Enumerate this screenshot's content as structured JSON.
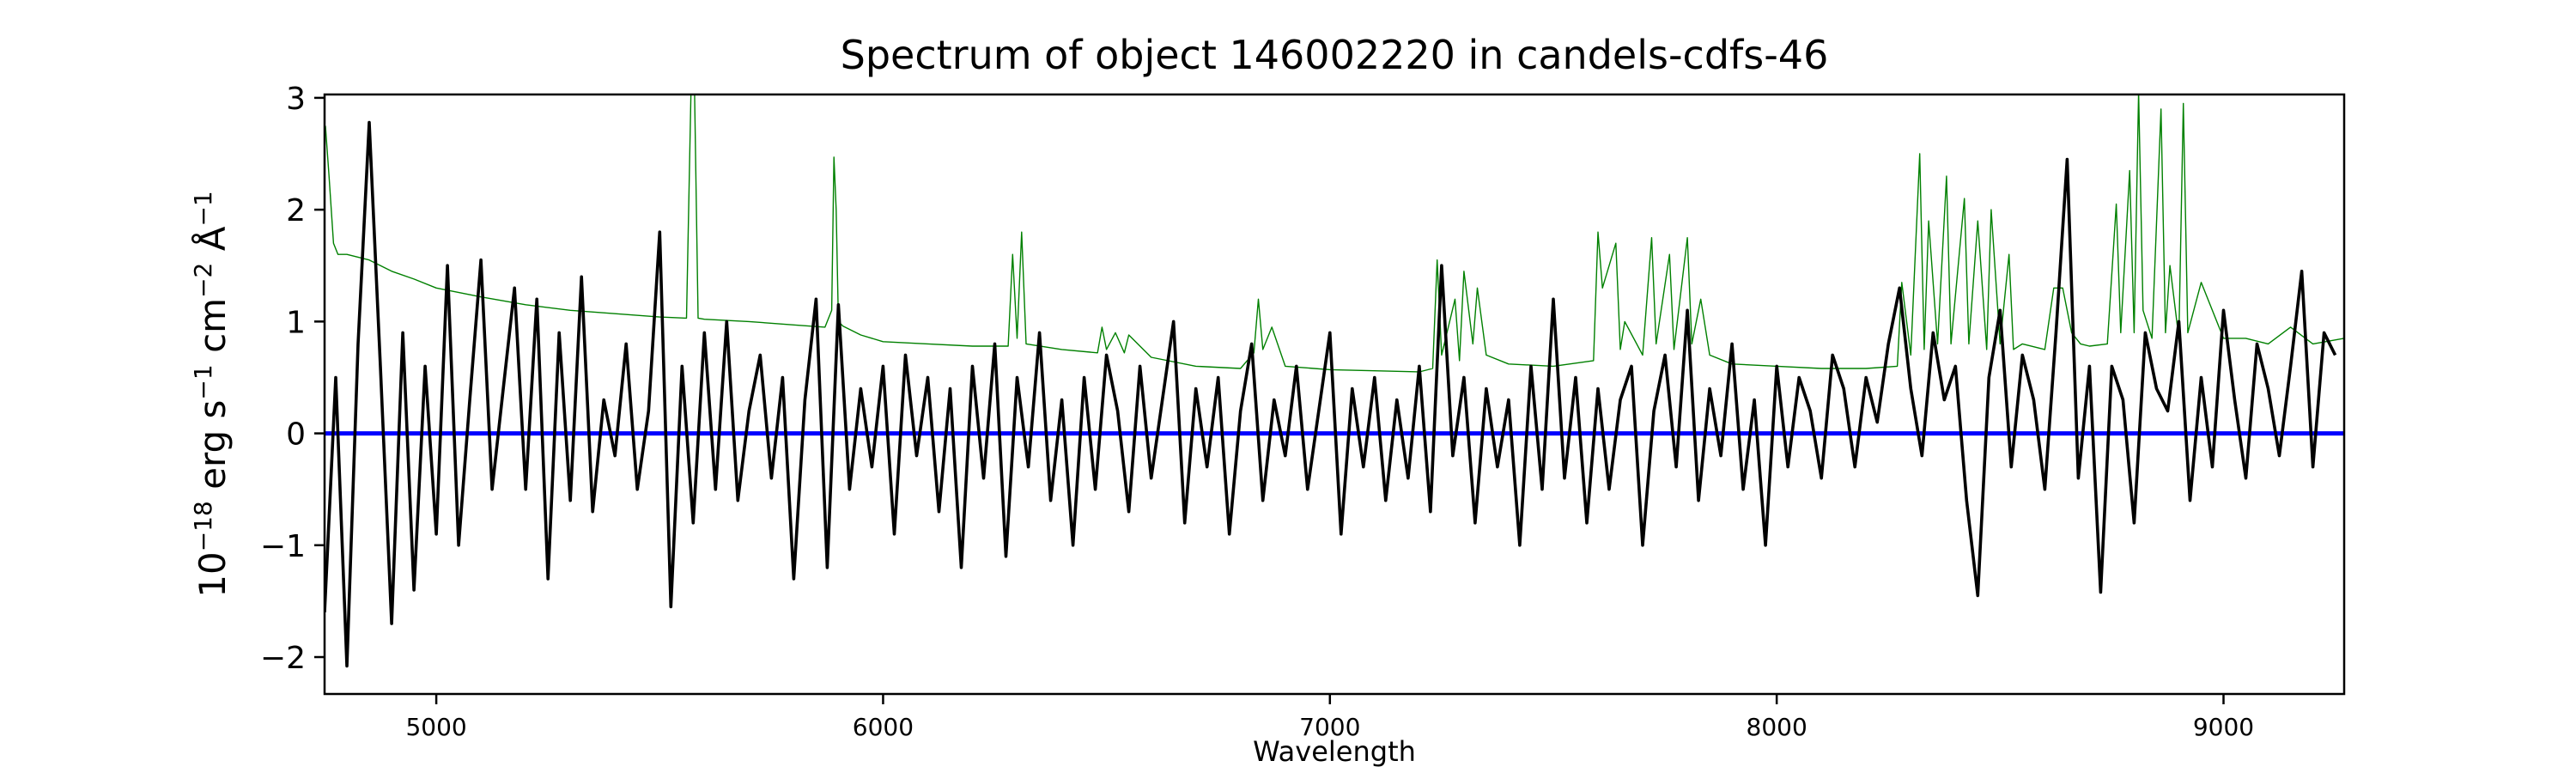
{
  "chart_data": {
    "type": "line",
    "title": "Spectrum of object 146002220 in candels-cdfs-46",
    "xlabel": "Wavelength",
    "ylabel": "10^{-18} erg s^{-1} cm^{-2} Å^{-1}",
    "ylabel_parts": {
      "base": "10",
      "exp1": "−18",
      "erg": " erg s",
      "exp2": "−1",
      "cm": " cm",
      "exp3": "−2",
      "ang": " Å",
      "exp4": "−1"
    },
    "xlim": [
      4750,
      9270
    ],
    "ylim": [
      -2.33,
      3.03
    ],
    "xticks": [
      5000,
      6000,
      7000,
      8000,
      9000
    ],
    "yticks": [
      -2,
      -1,
      0,
      1,
      2,
      3
    ],
    "ytick_labels": [
      "−2",
      "−1",
      "0",
      "1",
      "2",
      "3"
    ],
    "grid": false,
    "series": [
      {
        "color": "#000000",
        "x": [
          4750,
          4775,
          4800,
          4825,
          4850,
          4875,
          4900,
          4925,
          4950,
          4975,
          5000,
          5025,
          5050,
          5075,
          5100,
          5125,
          5150,
          5175,
          5200,
          5225,
          5250,
          5275,
          5300,
          5325,
          5350,
          5375,
          5400,
          5425,
          5450,
          5475,
          5500,
          5525,
          5550,
          5575,
          5600,
          5625,
          5650,
          5675,
          5700,
          5725,
          5750,
          5775,
          5800,
          5825,
          5850,
          5875,
          5900,
          5925,
          5950,
          5975,
          6000,
          6025,
          6050,
          6075,
          6100,
          6125,
          6150,
          6175,
          6200,
          6225,
          6250,
          6275,
          6300,
          6325,
          6350,
          6375,
          6400,
          6425,
          6450,
          6475,
          6500,
          6525,
          6550,
          6575,
          6600,
          6625,
          6650,
          6675,
          6700,
          6725,
          6750,
          6775,
          6800,
          6825,
          6850,
          6875,
          6900,
          6925,
          6950,
          6975,
          7000,
          7025,
          7050,
          7075,
          7100,
          7125,
          7150,
          7175,
          7200,
          7225,
          7250,
          7275,
          7300,
          7325,
          7350,
          7375,
          7400,
          7425,
          7450,
          7475,
          7500,
          7525,
          7550,
          7575,
          7600,
          7625,
          7650,
          7675,
          7700,
          7725,
          7750,
          7775,
          7800,
          7825,
          7850,
          7875,
          7900,
          7925,
          7950,
          7975,
          8000,
          8025,
          8050,
          8075,
          8100,
          8125,
          8150,
          8175,
          8200,
          8225,
          8250,
          8275,
          8300,
          8325,
          8350,
          8375,
          8400,
          8425,
          8450,
          8475,
          8500,
          8525,
          8550,
          8575,
          8600,
          8625,
          8650,
          8675,
          8700,
          8725,
          8750,
          8775,
          8800,
          8825,
          8850,
          8875,
          8900,
          8925,
          8950,
          8975,
          9000,
          9025,
          9050,
          9075,
          9100,
          9125,
          9150,
          9175,
          9200,
          9225,
          9250
        ],
        "y": [
          -1.6,
          0.5,
          -2.08,
          0.8,
          2.78,
          0.6,
          -1.7,
          0.9,
          -1.4,
          0.6,
          -0.9,
          1.5,
          -1.0,
          0.3,
          1.55,
          -0.5,
          0.4,
          1.3,
          -0.5,
          1.2,
          -1.3,
          0.9,
          -0.6,
          1.4,
          -0.7,
          0.3,
          -0.2,
          0.8,
          -0.5,
          0.2,
          1.8,
          -1.55,
          0.6,
          -0.8,
          0.9,
          -0.5,
          1.0,
          -0.6,
          0.2,
          0.7,
          -0.4,
          0.5,
          -1.3,
          0.3,
          1.2,
          -1.2,
          1.15,
          -0.5,
          0.4,
          -0.3,
          0.6,
          -0.9,
          0.7,
          -0.2,
          0.5,
          -0.7,
          0.4,
          -1.2,
          0.6,
          -0.4,
          0.8,
          -1.1,
          0.5,
          -0.3,
          0.9,
          -0.6,
          0.3,
          -1.0,
          0.5,
          -0.5,
          0.7,
          0.2,
          -0.7,
          0.6,
          -0.4,
          0.3,
          1.0,
          -0.8,
          0.4,
          -0.3,
          0.5,
          -0.9,
          0.2,
          0.8,
          -0.6,
          0.3,
          -0.2,
          0.6,
          -0.5,
          0.2,
          0.9,
          -0.9,
          0.4,
          -0.3,
          0.5,
          -0.6,
          0.3,
          -0.4,
          0.6,
          -0.7,
          1.5,
          -0.2,
          0.5,
          -0.8,
          0.4,
          -0.3,
          0.3,
          -1.0,
          0.6,
          -0.5,
          1.2,
          -0.4,
          0.5,
          -0.8,
          0.4,
          -0.5,
          0.3,
          0.6,
          -1.0,
          0.2,
          0.7,
          -0.3,
          1.1,
          -0.6,
          0.4,
          -0.2,
          0.8,
          -0.5,
          0.3,
          -1.0,
          0.6,
          -0.3,
          0.5,
          0.2,
          -0.4,
          0.7,
          0.4,
          -0.3,
          0.5,
          0.1,
          0.8,
          1.3,
          0.4,
          -0.2,
          0.9,
          0.3,
          0.6,
          -0.6,
          -1.45,
          0.5,
          1.1,
          -0.3,
          0.7,
          0.3,
          -0.5,
          0.9,
          2.45,
          -0.4,
          0.6,
          -1.42,
          0.6,
          0.3,
          -0.8,
          0.9,
          0.4,
          0.2,
          1.0,
          -0.6,
          0.5,
          -0.3,
          1.1,
          0.3,
          -0.4,
          0.8,
          0.4,
          -0.2,
          0.6,
          1.45,
          -0.3,
          0.9,
          0.7
        ]
      },
      {
        "color": "#008000",
        "x": [
          4752,
          4760,
          4770,
          4780,
          4800,
          4850,
          4900,
          4950,
          5000,
          5100,
          5200,
          5300,
          5400,
          5500,
          5560,
          5570,
          5578,
          5586,
          5600,
          5700,
          5800,
          5870,
          5885,
          5890,
          5895,
          5900,
          5910,
          5950,
          6000,
          6100,
          6200,
          6280,
          6290,
          6300,
          6310,
          6320,
          6400,
          6480,
          6490,
          6500,
          6520,
          6540,
          6550,
          6600,
          6700,
          6800,
          6830,
          6840,
          6850,
          6870,
          6900,
          7000,
          7100,
          7200,
          7230,
          7240,
          7250,
          7280,
          7290,
          7300,
          7320,
          7330,
          7350,
          7400,
          7500,
          7590,
          7600,
          7610,
          7640,
          7650,
          7660,
          7700,
          7720,
          7730,
          7760,
          7770,
          7800,
          7810,
          7830,
          7850,
          7900,
          8000,
          8100,
          8200,
          8270,
          8280,
          8300,
          8320,
          8330,
          8340,
          8360,
          8380,
          8390,
          8420,
          8430,
          8450,
          8470,
          8480,
          8500,
          8520,
          8530,
          8550,
          8600,
          8620,
          8640,
          8660,
          8680,
          8700,
          8740,
          8760,
          8770,
          8790,
          8800,
          8810,
          8820,
          8840,
          8860,
          8870,
          8880,
          8900,
          8910,
          8920,
          8950,
          9000,
          9050,
          9100,
          9150,
          9200,
          9270
        ],
        "y": [
          2.75,
          2.3,
          1.7,
          1.6,
          1.6,
          1.55,
          1.45,
          1.38,
          1.3,
          1.22,
          1.15,
          1.1,
          1.07,
          1.04,
          1.03,
          3.05,
          3.05,
          1.03,
          1.02,
          1.0,
          0.97,
          0.95,
          1.1,
          2.47,
          2.0,
          1.0,
          0.96,
          0.88,
          0.82,
          0.8,
          0.78,
          0.78,
          1.6,
          0.85,
          1.8,
          0.8,
          0.75,
          0.72,
          0.95,
          0.75,
          0.9,
          0.72,
          0.88,
          0.68,
          0.6,
          0.58,
          0.72,
          1.2,
          0.75,
          0.95,
          0.6,
          0.57,
          0.56,
          0.55,
          0.58,
          1.55,
          0.7,
          1.2,
          0.65,
          1.45,
          0.8,
          1.3,
          0.7,
          0.62,
          0.6,
          0.65,
          1.8,
          1.3,
          1.7,
          0.75,
          1.0,
          0.7,
          1.75,
          0.8,
          1.6,
          0.75,
          1.75,
          0.8,
          1.2,
          0.7,
          0.62,
          0.6,
          0.58,
          0.58,
          0.6,
          1.35,
          0.7,
          2.5,
          0.75,
          1.9,
          0.8,
          2.3,
          0.8,
          2.1,
          0.8,
          1.9,
          0.75,
          2.0,
          0.8,
          1.6,
          0.75,
          0.8,
          0.75,
          1.3,
          1.3,
          0.9,
          0.8,
          0.78,
          0.8,
          2.05,
          0.9,
          2.35,
          0.9,
          3.05,
          1.1,
          0.85,
          2.9,
          0.9,
          1.5,
          0.85,
          2.95,
          0.9,
          1.35,
          0.85,
          0.85,
          0.8,
          0.95,
          0.8,
          0.85
        ]
      },
      {
        "color": "#0000ff",
        "x": [
          4750,
          9270
        ],
        "y": [
          0,
          0
        ]
      }
    ]
  }
}
